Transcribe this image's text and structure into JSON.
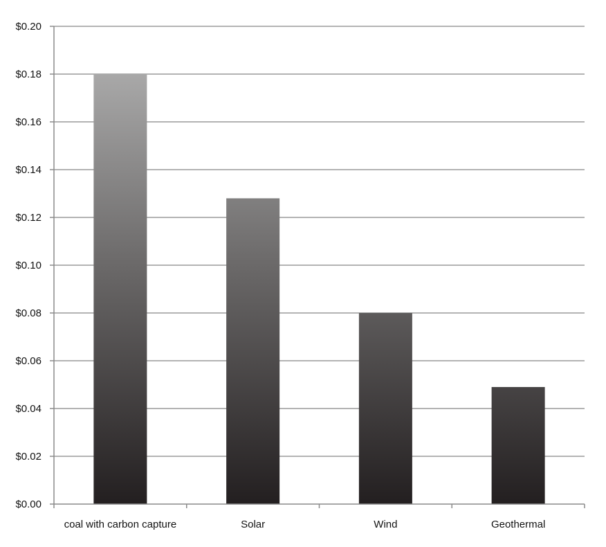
{
  "chart_data": {
    "type": "bar",
    "title": "",
    "xlabel": "",
    "ylabel": "",
    "categories": [
      "coal with carbon capture",
      "Solar",
      "Wind",
      "Geothermal"
    ],
    "values": [
      0.18,
      0.128,
      0.08,
      0.049
    ],
    "ylim": [
      0,
      0.2
    ],
    "yticks": [
      "$0.00",
      "$0.02",
      "$0.04",
      "$0.06",
      "$0.08",
      "$0.10",
      "$0.12",
      "$0.14",
      "$0.16",
      "$0.18",
      "$0.20"
    ],
    "ytick_values": [
      0,
      0.02,
      0.04,
      0.06,
      0.08,
      0.1,
      0.12,
      0.14,
      0.16,
      0.18,
      0.2
    ],
    "grid": true,
    "legend": "none",
    "bar_fill": "vertical gradient light gray (top) to near-black (bottom)",
    "colors": {
      "bar_top": "#b8b8b8",
      "bar_bottom": "#231f20",
      "grid": "#9a9a9a",
      "text": "#111111"
    }
  }
}
